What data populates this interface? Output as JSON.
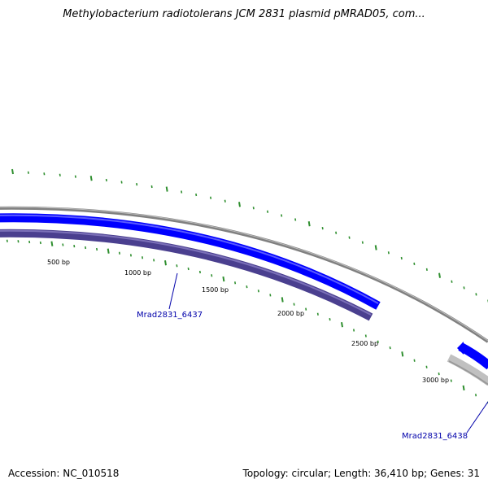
{
  "title": "Methylobacterium radiotolerans JCM 2831 plasmid pMRAD05, com...",
  "footer": {
    "accession": "Accession: NC_010518",
    "summary": "Topology: circular; Length: 36,410 bp; Genes: 31"
  },
  "map": {
    "tick_labels": [
      "500 bp",
      "1000 bp",
      "1500 bp",
      "2000 bp",
      "2500 bp",
      "3000 bp"
    ],
    "genes": [
      {
        "name": "Mrad2831_6437",
        "strand": "reverse",
        "color": "#4a3f8f"
      },
      {
        "name": "Mrad2831_6438",
        "strand": "forward",
        "color": "#0000ff"
      }
    ],
    "colors": {
      "backbone": "#808080",
      "forward_gene": "#0000ff",
      "reverse_gene": "#4a3f8f",
      "other_gene": "#c0c0c0",
      "gc_ticks": "#2f8f2f",
      "label": "#0000aa"
    }
  }
}
